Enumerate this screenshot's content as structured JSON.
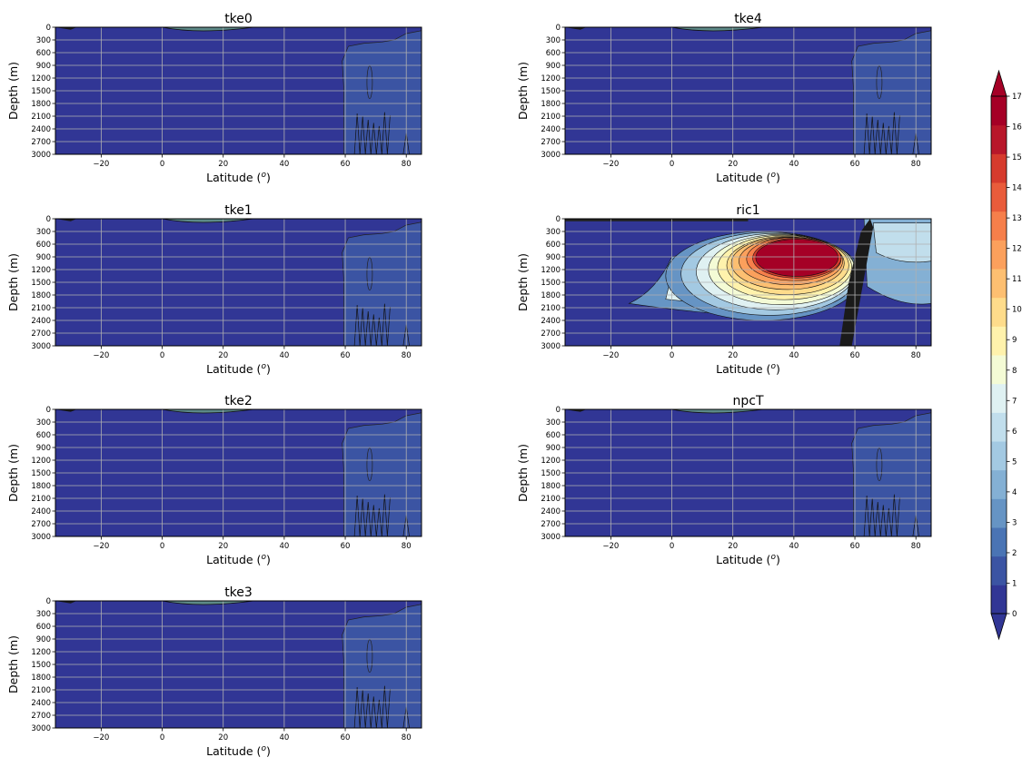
{
  "chart_data": {
    "type": "heatmap",
    "panels": [
      {
        "title": "tke0",
        "xlabel": "Latitude (",
        "xlabel_sup": "o",
        "xlabel_tail": ")",
        "ylabel": "Depth (m)",
        "xlim": [
          -35,
          85
        ],
        "ylim": [
          3000,
          0
        ],
        "field": "weak"
      },
      {
        "title": "tke1",
        "xlabel": "Latitude (",
        "xlabel_sup": "o",
        "xlabel_tail": ")",
        "ylabel": "Depth (m)",
        "xlim": [
          -35,
          85
        ],
        "ylim": [
          3000,
          0
        ],
        "field": "weak"
      },
      {
        "title": "tke2",
        "xlabel": "Latitude (",
        "xlabel_sup": "o",
        "xlabel_tail": ")",
        "ylabel": "Depth (m)",
        "xlim": [
          -35,
          85
        ],
        "ylim": [
          3000,
          0
        ],
        "field": "weak"
      },
      {
        "title": "tke3",
        "xlabel": "Latitude (",
        "xlabel_sup": "o",
        "xlabel_tail": ")",
        "ylabel": "Depth (m)",
        "xlim": [
          -35,
          85
        ],
        "ylim": [
          3000,
          0
        ],
        "field": "weak"
      },
      {
        "title": "tke4",
        "xlabel": "Latitude (",
        "xlabel_sup": "o",
        "xlabel_tail": ")",
        "ylabel": "Depth (m)",
        "xlim": [
          -35,
          85
        ],
        "ylim": [
          3000,
          0
        ],
        "field": "weak"
      },
      {
        "title": "ric1",
        "xlabel": "Latitude (",
        "xlabel_sup": "o",
        "xlabel_tail": ")",
        "ylabel": "Depth (m)",
        "xlim": [
          -35,
          85
        ],
        "ylim": [
          3000,
          0
        ],
        "field": "strong"
      },
      {
        "title": "npcT",
        "xlabel": "Latitude (",
        "xlabel_sup": "o",
        "xlabel_tail": ")",
        "ylabel": "Depth (m)",
        "xlim": [
          -35,
          85
        ],
        "ylim": [
          3000,
          0
        ],
        "field": "weak"
      }
    ],
    "x_ticks": [
      -20,
      0,
      20,
      40,
      60,
      80
    ],
    "x_tick_labels": [
      "−20",
      "0",
      "20",
      "40",
      "60",
      "80"
    ],
    "y_ticks": [
      0,
      300,
      600,
      900,
      1200,
      1500,
      1800,
      2100,
      2400,
      2700,
      3000
    ],
    "y_tick_labels": [
      "0",
      "300",
      "600",
      "900",
      "1200",
      "1500",
      "1800",
      "2100",
      "2400",
      "2700",
      "3000"
    ],
    "grid": true,
    "colorbar": {
      "levels": [
        0,
        1,
        2,
        3,
        4,
        5,
        6,
        7,
        8,
        9,
        10,
        11,
        12,
        13,
        14,
        15,
        16,
        17
      ],
      "labels": [
        "0",
        "1",
        "2",
        "3",
        "4",
        "5",
        "6",
        "7",
        "8",
        "9",
        "10",
        "11",
        "12",
        "13",
        "14",
        "15",
        "16",
        "17"
      ],
      "colors": [
        "#313695",
        "#3b54a3",
        "#4a74b4",
        "#6694c4",
        "#84b0d4",
        "#a3c9e2",
        "#c1deec",
        "#dff1f2",
        "#f4fbd5",
        "#fff2ac",
        "#fedc8b",
        "#fdbf71",
        "#fba05c",
        "#f67f4b",
        "#e95c3b",
        "#d63b2d",
        "#b8172a",
        "#a50026"
      ],
      "under_color": "#313695",
      "over_color": "#a50026",
      "extend": "both"
    }
  }
}
